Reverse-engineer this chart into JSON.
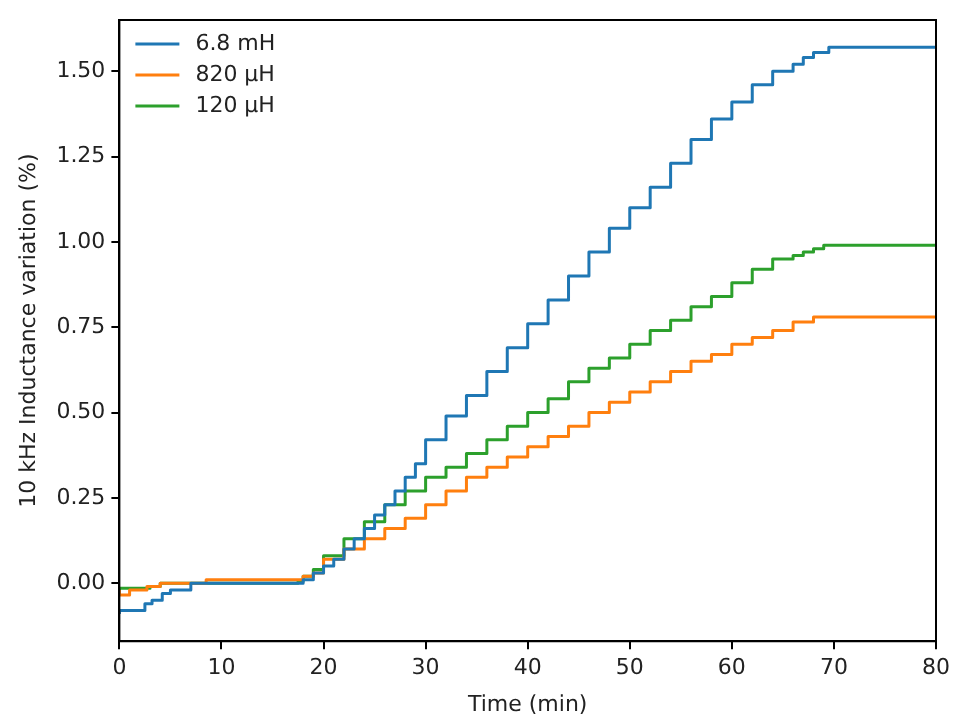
{
  "chart_data": {
    "type": "step",
    "xlabel": "Time (min)",
    "ylabel": "10 kHz Inductance variation (%)",
    "xlim": [
      0,
      80
    ],
    "xticks": [
      0,
      10,
      20,
      30,
      40,
      50,
      60,
      70,
      80
    ],
    "ylim": [
      -0.17,
      1.65
    ],
    "yticks": [
      {
        "value": 0,
        "label": "0.00"
      },
      {
        "value": 0.25,
        "label": "0.25"
      },
      {
        "value": 0.5,
        "label": "0.50"
      },
      {
        "value": 0.75,
        "label": "0.75"
      },
      {
        "value": 1,
        "label": "1.00"
      },
      {
        "value": 1.25,
        "label": "1.25"
      },
      {
        "value": 1.5,
        "label": "1.50"
      }
    ],
    "grid": false,
    "legend": "top left",
    "series": [
      {
        "name": "6.8 mH",
        "color": "#1f77b4",
        "x": [
          0,
          2.5,
          3.2,
          4.2,
          5,
          7,
          8.5,
          18,
          19,
          20,
          21,
          22,
          23,
          24,
          25,
          26,
          27,
          28,
          29,
          30,
          32,
          34,
          36,
          38,
          40,
          42,
          44,
          46,
          48,
          50,
          52,
          54,
          56,
          58,
          60,
          62,
          64,
          66,
          67,
          68,
          69.5,
          74.5,
          80
        ],
        "values": [
          -0.09,
          -0.08,
          -0.06,
          -0.05,
          -0.03,
          -0.02,
          0,
          0,
          0.01,
          0.03,
          0.05,
          0.07,
          0.1,
          0.13,
          0.16,
          0.2,
          0.23,
          0.27,
          0.31,
          0.35,
          0.42,
          0.49,
          0.55,
          0.62,
          0.69,
          0.76,
          0.83,
          0.9,
          0.97,
          1.04,
          1.1,
          1.16,
          1.23,
          1.3,
          1.36,
          1.41,
          1.46,
          1.5,
          1.52,
          1.54,
          1.555,
          1.57,
          1.57
        ]
      },
      {
        "name": "820 µH",
        "color": "#ff7f0e",
        "x": [
          0,
          1,
          2.7,
          4,
          8.5,
          16.5,
          18,
          19,
          20,
          22,
          24,
          26,
          28,
          30,
          32,
          34,
          36,
          38,
          40,
          42,
          44,
          46,
          48,
          50,
          52,
          54,
          56,
          58,
          60,
          62,
          64,
          66,
          68,
          72.5,
          80
        ],
        "values": [
          -0.02,
          -0.035,
          -0.02,
          -0.01,
          0,
          0.01,
          0.01,
          0.02,
          0.03,
          0.07,
          0.1,
          0.13,
          0.16,
          0.19,
          0.23,
          0.27,
          0.31,
          0.34,
          0.37,
          0.4,
          0.43,
          0.46,
          0.5,
          0.53,
          0.56,
          0.59,
          0.62,
          0.65,
          0.67,
          0.7,
          0.72,
          0.74,
          0.765,
          0.78,
          0.78
        ]
      },
      {
        "name": "120 µH",
        "color": "#2ca02c",
        "x": [
          0,
          3,
          4,
          5.5,
          17.5,
          18,
          19,
          20,
          22,
          24,
          26,
          28,
          30,
          32,
          34,
          36,
          38,
          40,
          42,
          44,
          46,
          48,
          50,
          52,
          54,
          56,
          58,
          60,
          62,
          64,
          66,
          67,
          68,
          69,
          72.5,
          80
        ],
        "values": [
          -0.02,
          -0.015,
          -0.01,
          0,
          0,
          0.005,
          0.02,
          0.04,
          0.08,
          0.13,
          0.18,
          0.23,
          0.27,
          0.31,
          0.34,
          0.38,
          0.42,
          0.46,
          0.5,
          0.54,
          0.59,
          0.63,
          0.66,
          0.7,
          0.74,
          0.77,
          0.81,
          0.84,
          0.88,
          0.92,
          0.95,
          0.96,
          0.97,
          0.98,
          0.99,
          0.99
        ]
      }
    ]
  }
}
